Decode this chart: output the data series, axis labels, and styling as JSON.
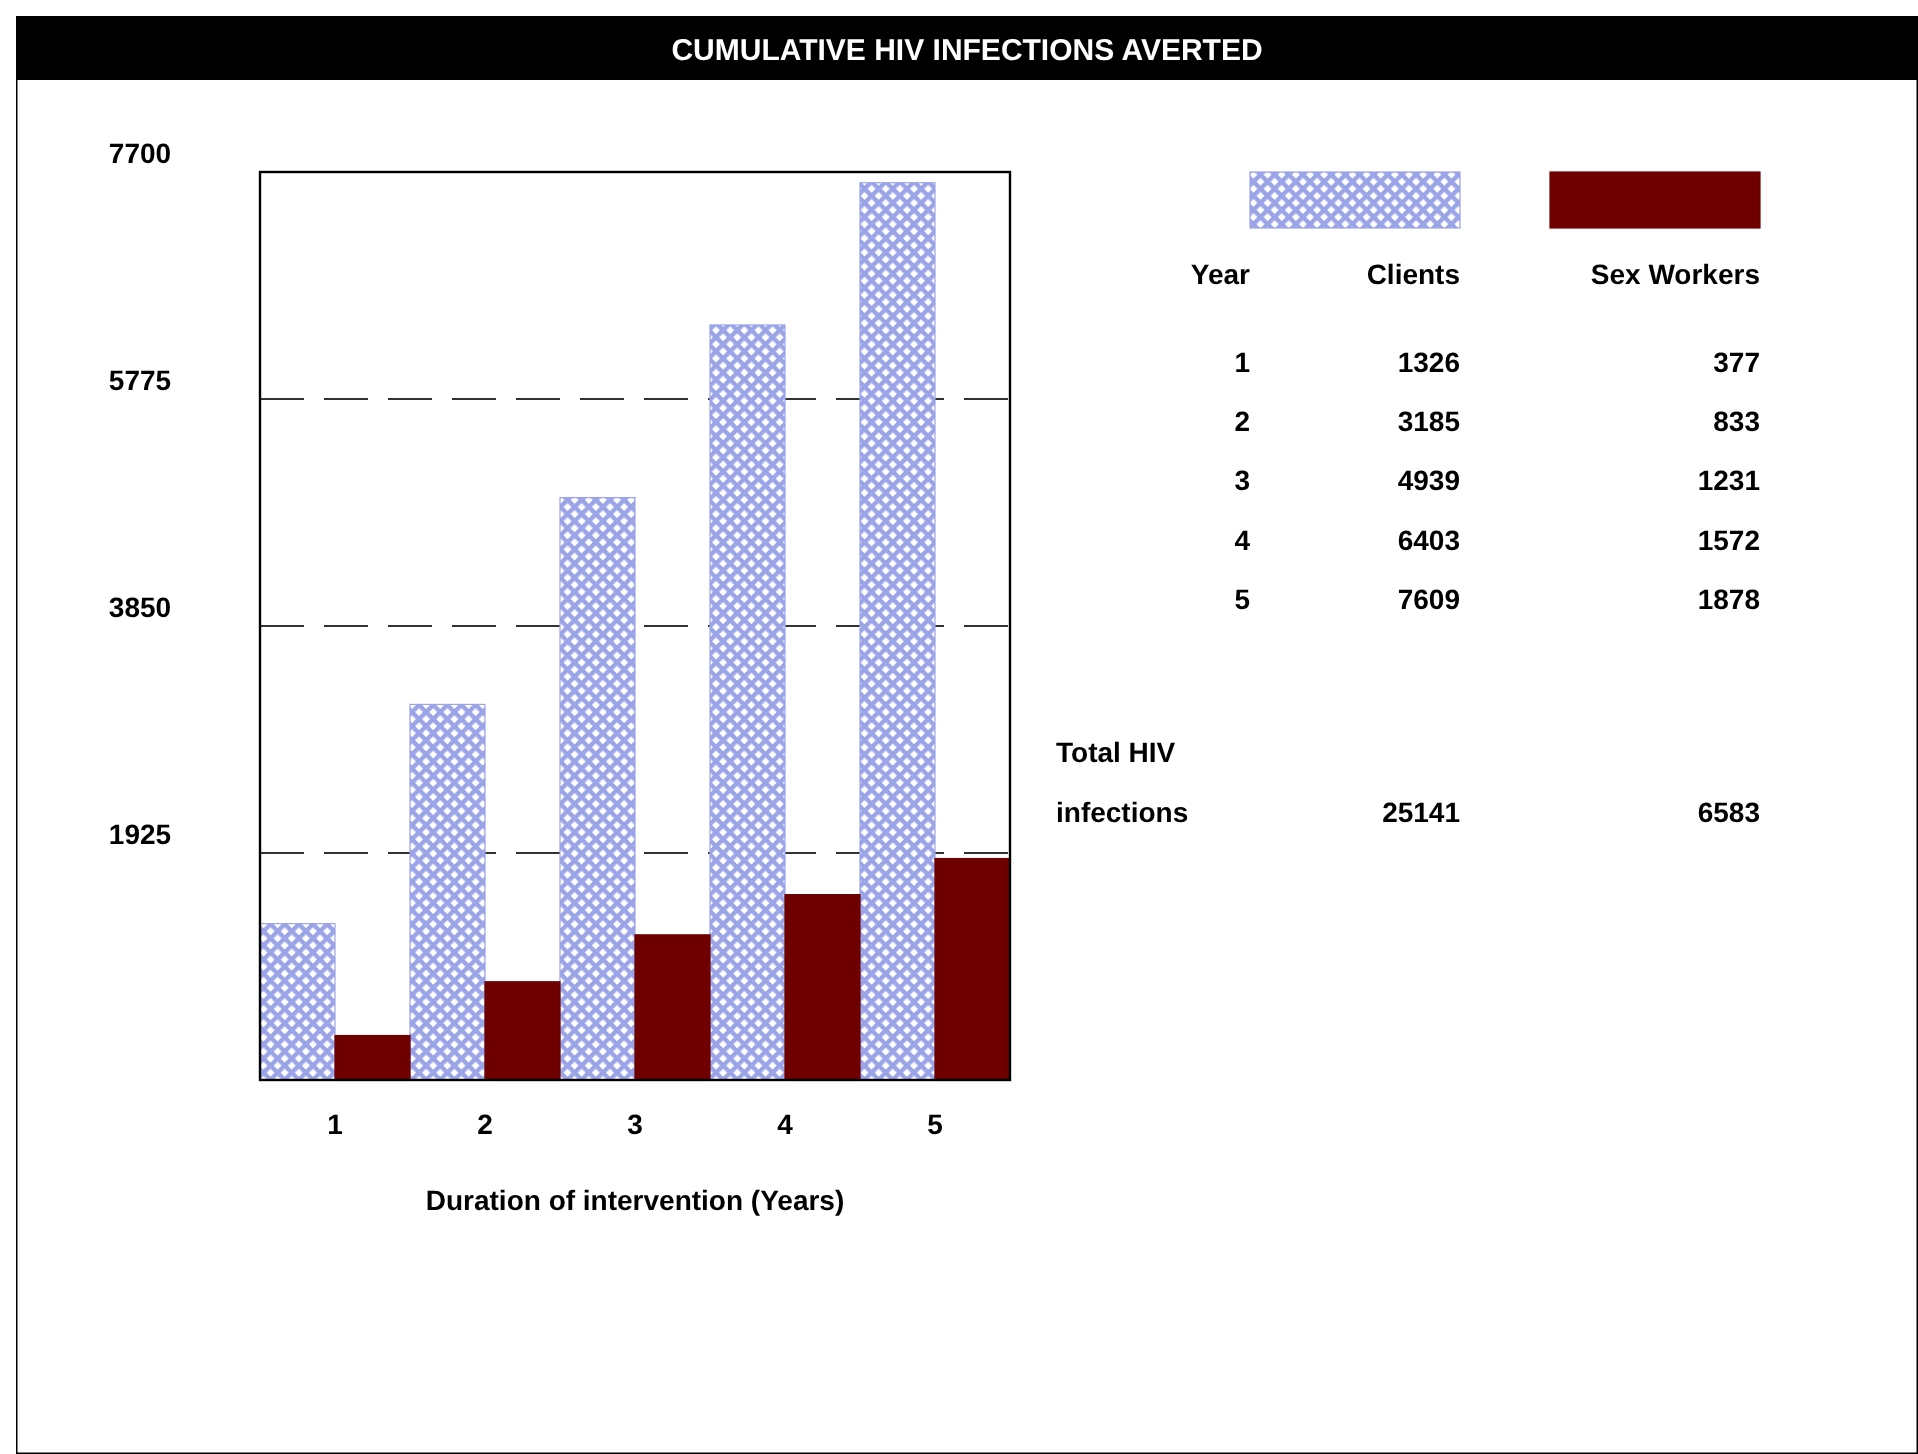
{
  "chart_data": {
    "type": "bar",
    "title": "CUMULATIVE HIV INFECTIONS AVERTED",
    "xlabel": "Duration of intervention (Years)",
    "legend_title": "Year",
    "categories": [
      "1",
      "2",
      "3",
      "4",
      "5"
    ],
    "series": [
      {
        "name": "Clients",
        "color": "#9aa4e6",
        "values": [
          1326,
          3185,
          4939,
          6403,
          7609
        ]
      },
      {
        "name": "Sex Workers",
        "color": "#6e0000",
        "values": [
          377,
          833,
          1231,
          1572,
          1878
        ]
      }
    ],
    "ylim": [
      0,
      7700
    ],
    "yticks": [
      1925,
      3850,
      5775,
      7700
    ],
    "grid": "y",
    "legend": "right",
    "annotations": [
      "1326",
      "377",
      "3185",
      "833",
      "4939",
      "1231",
      "6403",
      "1572",
      "7609",
      "1878",
      "Total HIV infections",
      "25141",
      "6583"
    ]
  }
}
